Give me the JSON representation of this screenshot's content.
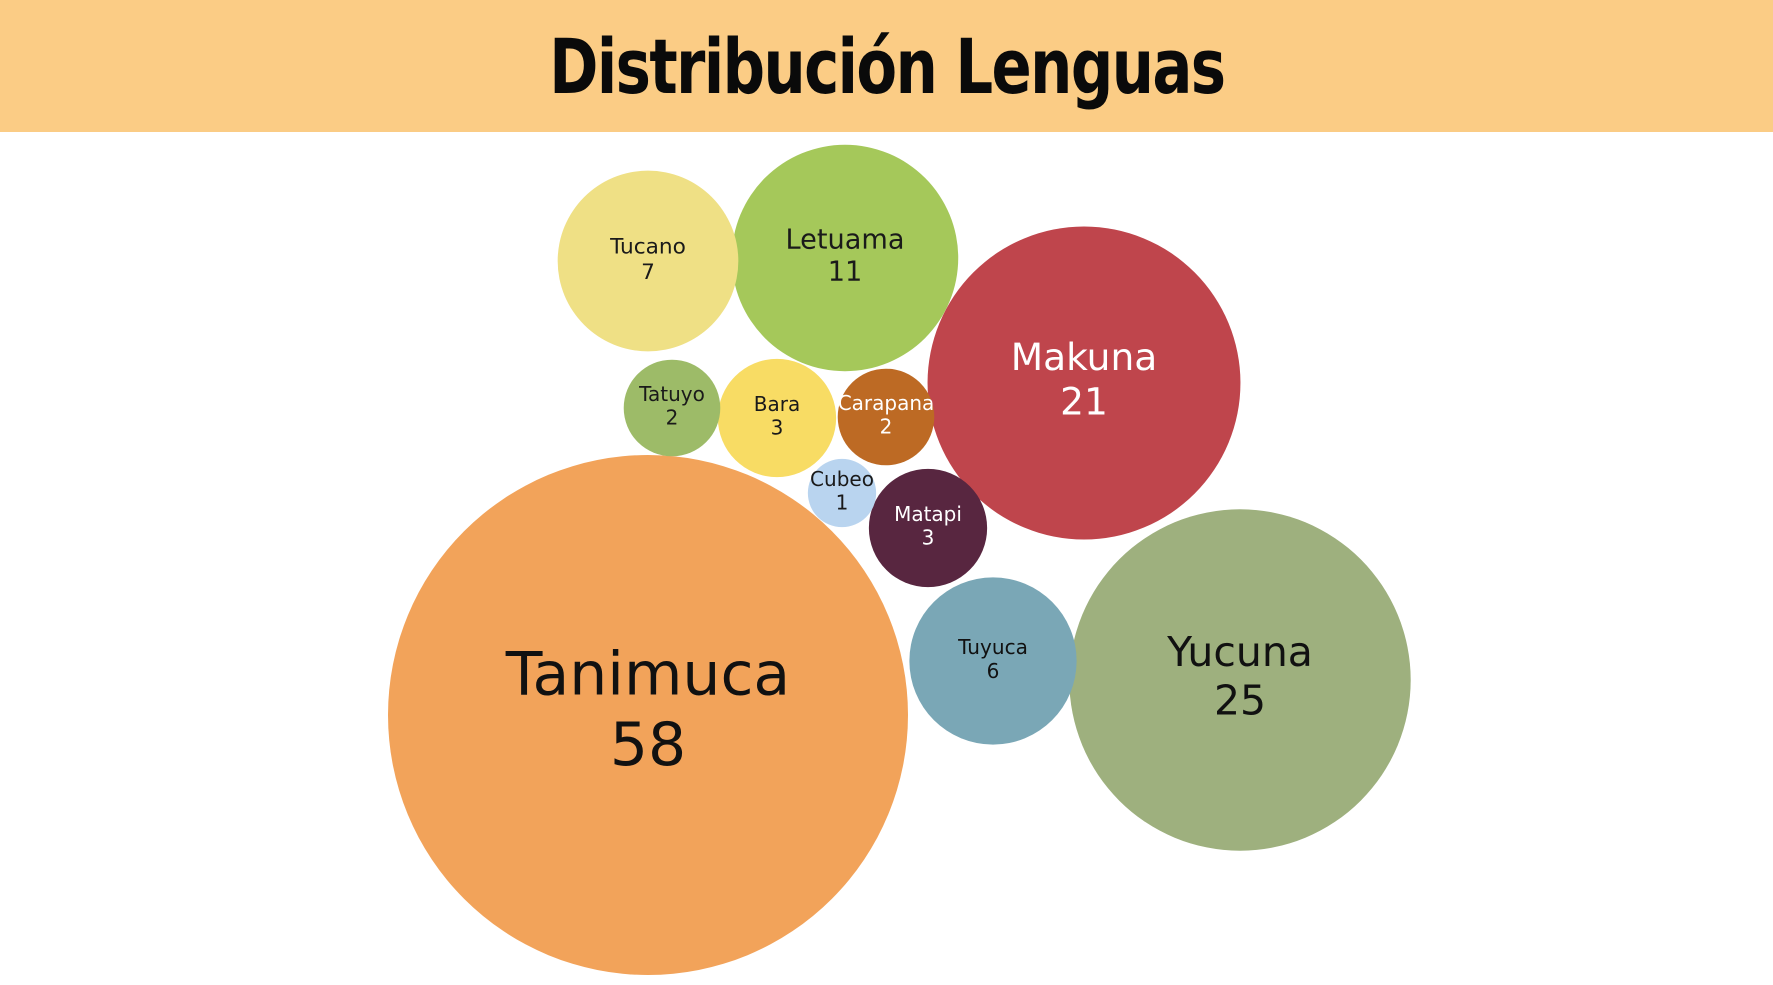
{
  "title": "Distribución Lenguas",
  "colors": {
    "title_bar": "#fbcc85"
  },
  "chart_data": {
    "type": "bubble",
    "title": "Distribución Lenguas",
    "series": [
      {
        "name": "Tanimuca",
        "value": 58,
        "color": "#f2a35a",
        "text_color": "#111111"
      },
      {
        "name": "Yucuna",
        "value": 25,
        "color": "#9eb07e",
        "text_color": "#111111"
      },
      {
        "name": "Makuna",
        "value": 21,
        "color": "#bf454c",
        "text_color": "#ffffff"
      },
      {
        "name": "Letuama",
        "value": 11,
        "color": "#a5c85a",
        "text_color": "#1a1a1a"
      },
      {
        "name": "Tucano",
        "value": 7,
        "color": "#efe085",
        "text_color": "#1a1a1a"
      },
      {
        "name": "Tuyuca",
        "value": 6,
        "color": "#7aa7b6",
        "text_color": "#111111"
      },
      {
        "name": "Bara",
        "value": 3,
        "color": "#f8dc64",
        "text_color": "#1a1a1a"
      },
      {
        "name": "Matapi",
        "value": 3,
        "color": "#582640",
        "text_color": "#ffffff"
      },
      {
        "name": "Tatuyo",
        "value": 2,
        "color": "#9dbb68",
        "text_color": "#1a1a1a"
      },
      {
        "name": "Carapana",
        "value": 2,
        "color": "#bd6a24",
        "text_color": "#ffffff"
      },
      {
        "name": "Cubeo",
        "value": 1,
        "color": "#b9d4ef",
        "text_color": "#1a1a1a"
      }
    ]
  }
}
